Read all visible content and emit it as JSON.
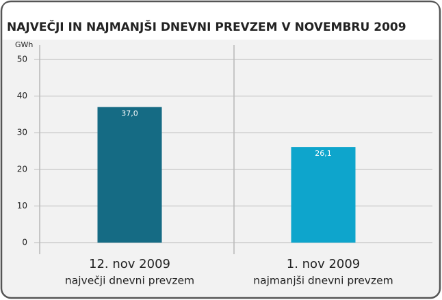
{
  "chart_data": {
    "type": "bar",
    "title": "NAJVEČJI IN NAJMANJŠI DNEVNI PREVZEM V NOVEMBRU 2009",
    "y_label": "GWh",
    "categories": [
      [
        "12. nov 2009",
        "največji dnevni prevzem"
      ],
      [
        "1. nov 2009",
        "najmanjši dnevni prevzem"
      ]
    ],
    "values": [
      37.0,
      26.1
    ],
    "value_labels": [
      "37,0",
      "26,1"
    ],
    "colors": [
      "#156b84",
      "#0ea5cc"
    ],
    "ylim": [
      0,
      50
    ],
    "yticks": [
      0,
      10,
      20,
      30,
      40,
      50
    ],
    "grid": true
  }
}
